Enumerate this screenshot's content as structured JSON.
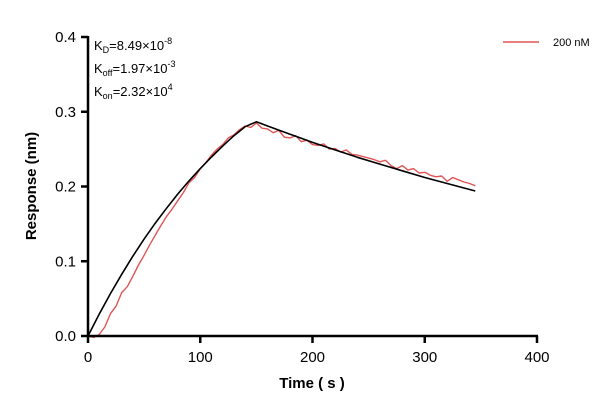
{
  "chart_data": {
    "type": "line",
    "xlabel": "Time ( s )",
    "ylabel": "Response (nm)",
    "xlim": [
      0,
      400
    ],
    "ylim": [
      0,
      0.4
    ],
    "xticks": [
      "0",
      "100",
      "200",
      "300",
      "400"
    ],
    "yticks": [
      "0.0",
      "0.1",
      "0.2",
      "0.3",
      "0.4"
    ],
    "grid": false,
    "legend_position": "top-right",
    "annotations": {
      "kd": {
        "base": "K",
        "sub": "D",
        "text": "=8.49×10",
        "exp": "-8"
      },
      "koff": {
        "base": "K",
        "sub": "off",
        "text": "=1.97×10",
        "exp": "-3"
      },
      "kon": {
        "base": "K",
        "sub": "on",
        "text": "=2.32×10",
        "exp": "4"
      }
    },
    "series": [
      {
        "name": "200 nM",
        "color": "#e05555",
        "x": [
          0,
          5,
          10,
          15,
          20,
          25,
          30,
          35,
          40,
          45,
          50,
          55,
          60,
          65,
          70,
          75,
          80,
          85,
          90,
          95,
          100,
          105,
          110,
          115,
          120,
          125,
          130,
          135,
          140,
          145,
          150,
          155,
          160,
          165,
          170,
          175,
          180,
          185,
          190,
          195,
          200,
          205,
          210,
          215,
          220,
          225,
          230,
          235,
          240,
          245,
          250,
          255,
          260,
          265,
          270,
          275,
          280,
          285,
          290,
          295,
          300,
          305,
          310,
          315,
          320,
          325,
          330,
          335,
          340,
          345
        ],
        "y": [
          0.0,
          -0.002,
          0.002,
          0.012,
          0.03,
          0.04,
          0.058,
          0.066,
          0.08,
          0.095,
          0.108,
          0.122,
          0.135,
          0.148,
          0.16,
          0.17,
          0.181,
          0.192,
          0.205,
          0.212,
          0.224,
          0.232,
          0.242,
          0.25,
          0.256,
          0.265,
          0.269,
          0.276,
          0.281,
          0.279,
          0.285,
          0.278,
          0.277,
          0.272,
          0.275,
          0.266,
          0.265,
          0.268,
          0.26,
          0.262,
          0.256,
          0.255,
          0.257,
          0.25,
          0.251,
          0.246,
          0.249,
          0.243,
          0.242,
          0.24,
          0.238,
          0.236,
          0.233,
          0.235,
          0.228,
          0.224,
          0.228,
          0.222,
          0.224,
          0.218,
          0.219,
          0.215,
          0.213,
          0.214,
          0.207,
          0.212,
          0.209,
          0.206,
          0.204,
          0.201
        ]
      },
      {
        "color": "#000000",
        "x": [
          0,
          10,
          20,
          30,
          40,
          50,
          60,
          70,
          80,
          90,
          100,
          110,
          120,
          130,
          140,
          150,
          160,
          170,
          180,
          190,
          200,
          220,
          240,
          260,
          280,
          300,
          320,
          345
        ],
        "y": [
          0,
          0.0293,
          0.0568,
          0.0826,
          0.1069,
          0.1296,
          0.151,
          0.171,
          0.19,
          0.2075,
          0.224,
          0.2395,
          0.254,
          0.268,
          0.28,
          0.2865,
          0.281,
          0.2755,
          0.27,
          0.2645,
          0.259,
          0.249,
          0.239,
          0.23,
          0.221,
          0.212,
          0.204,
          0.194
        ]
      }
    ]
  }
}
